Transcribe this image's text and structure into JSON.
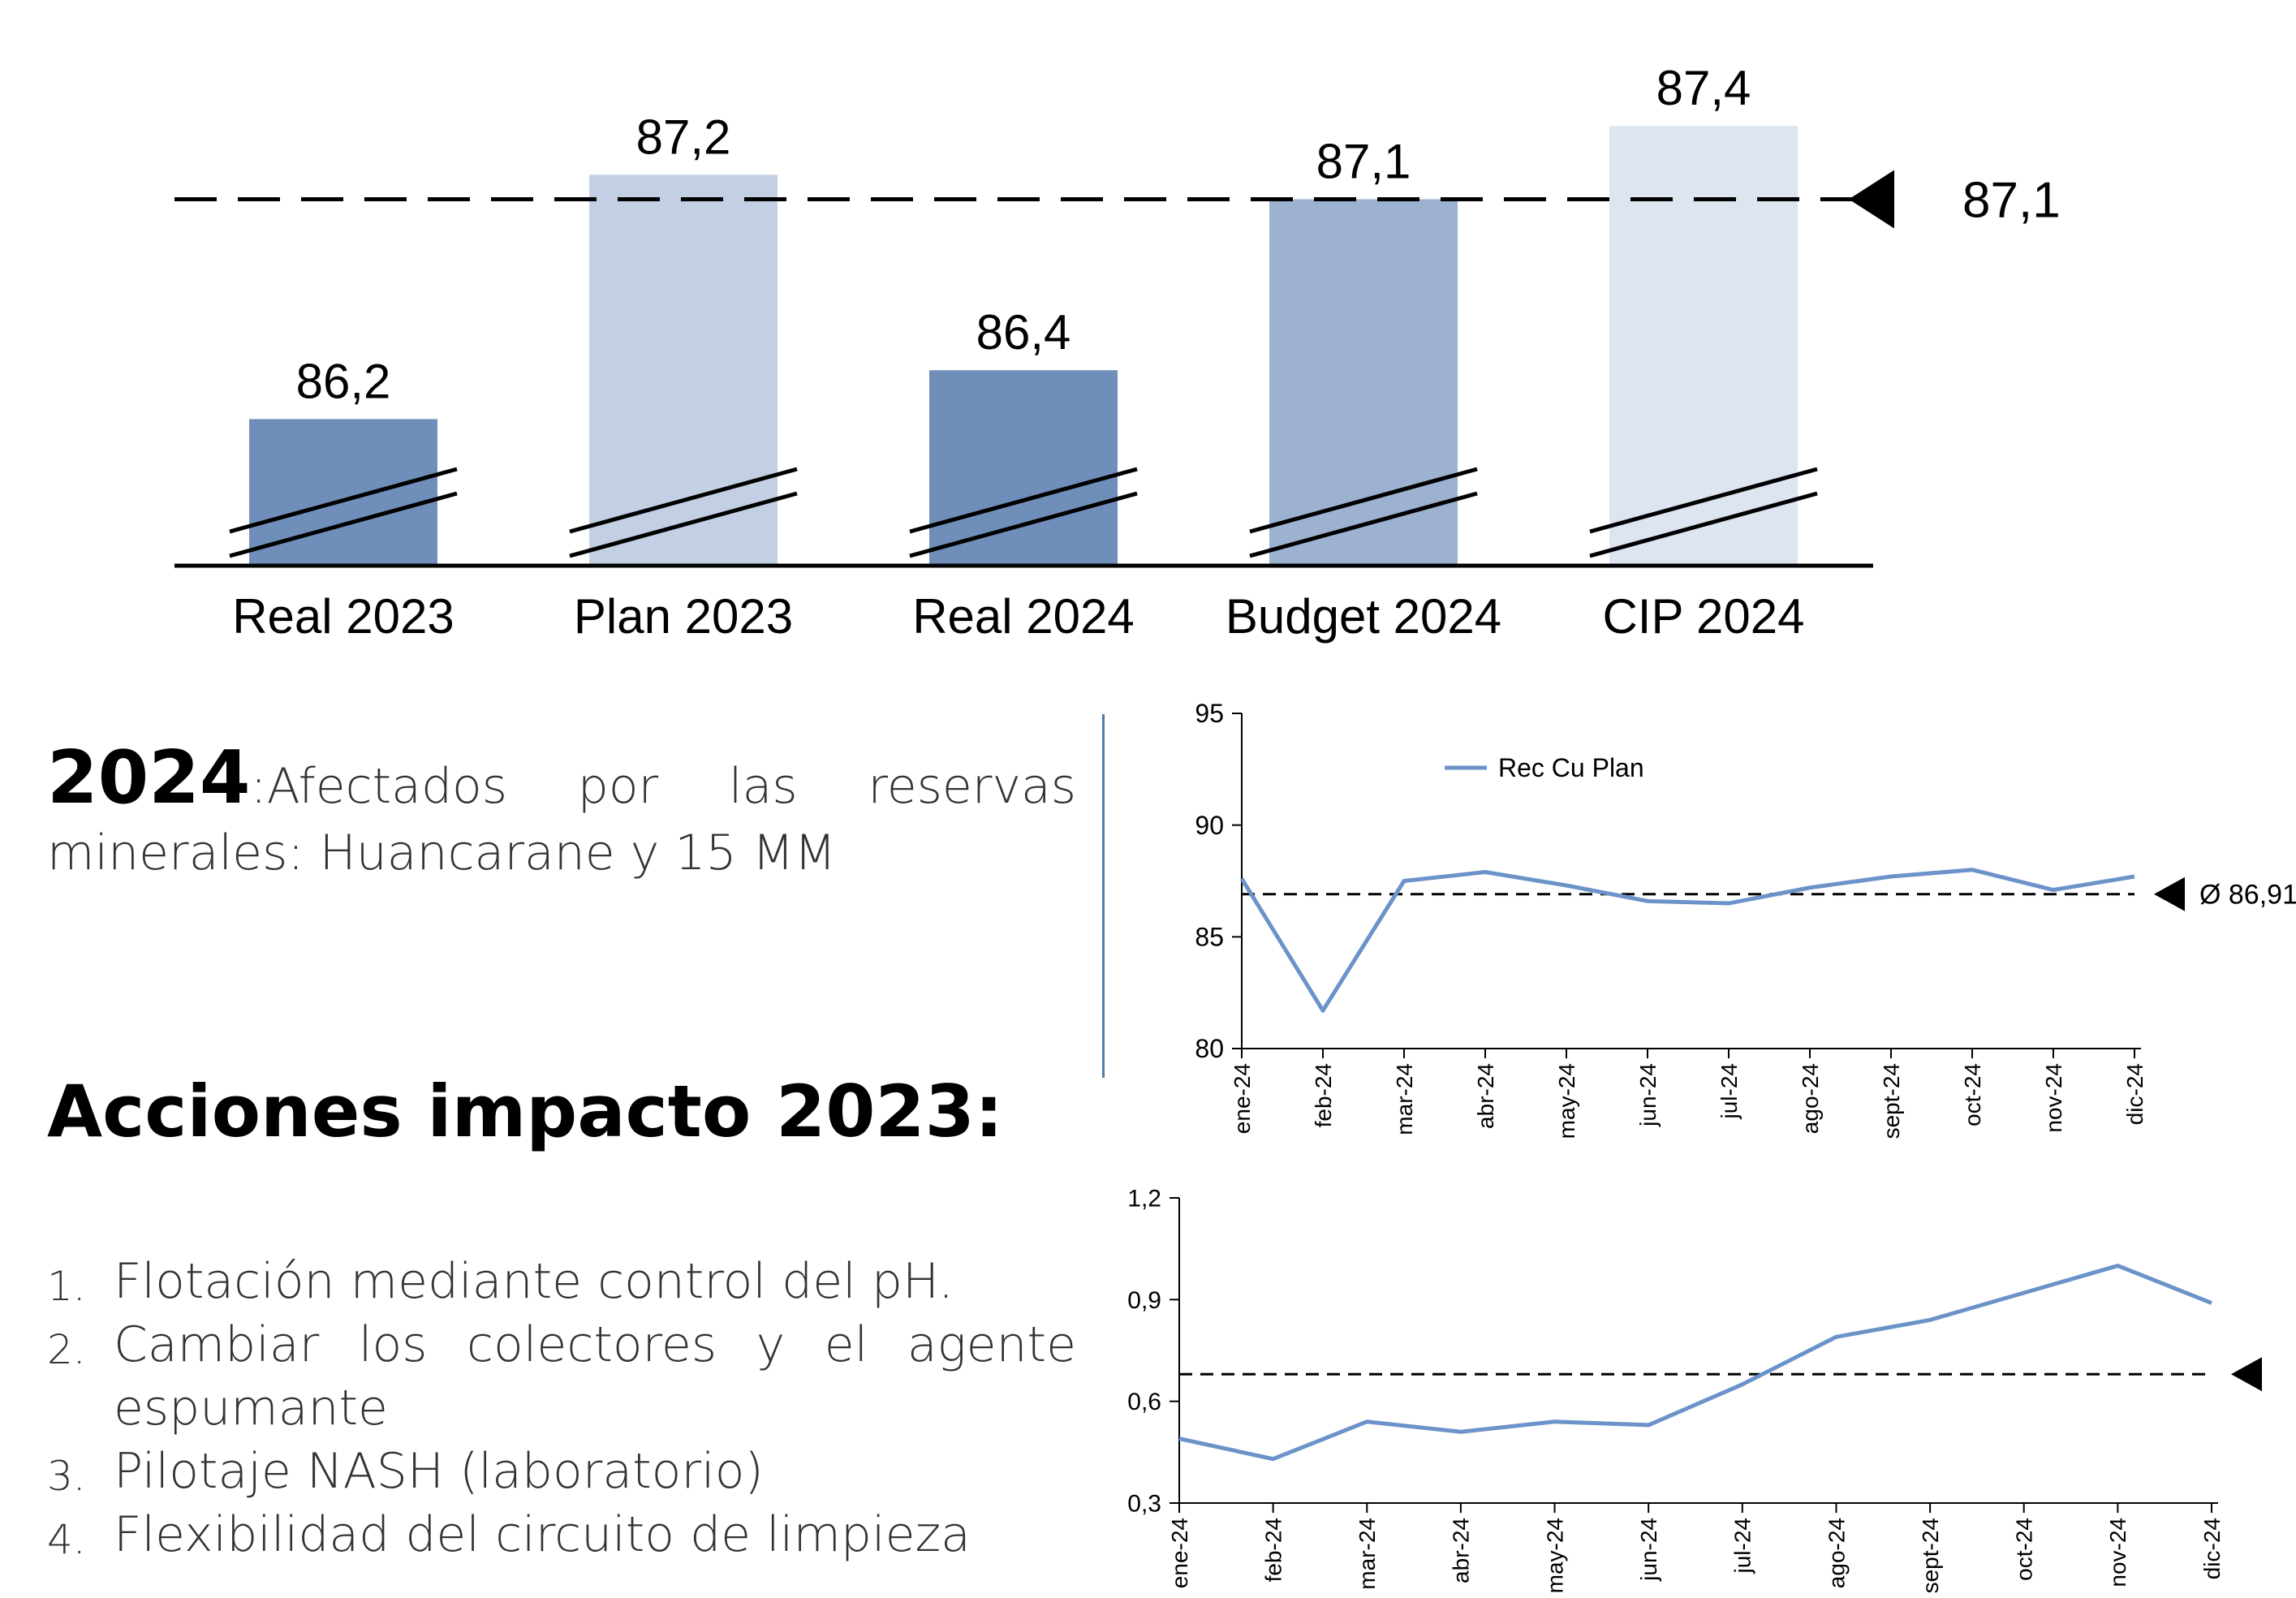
{
  "chart_data": [
    {
      "type": "bar",
      "categories": [
        "Real 2023",
        "Plan 2023",
        "Real 2024",
        "Budget 2024",
        "CIP 2024"
      ],
      "values": [
        86.2,
        87.2,
        86.4,
        87.1,
        87.4
      ],
      "value_labels": [
        "86,2",
        "87,2",
        "86,4",
        "87,1",
        "87,4"
      ],
      "colors": [
        "#6f8fba",
        "#c3cfe3",
        "#6f8fba",
        "#9db1d0",
        "#dde5f1"
      ],
      "ylim": [
        85.6,
        87.55
      ],
      "axis_break": true,
      "reference_line": {
        "value": 87.1,
        "label": "87,1",
        "style": "dashed"
      }
    },
    {
      "type": "line",
      "x": [
        "ene-24",
        "feb-24",
        "mar-24",
        "abr-24",
        "may-24",
        "jun-24",
        "jul-24",
        "ago-24",
        "sept-24",
        "oct-24",
        "nov-24",
        "dic-24"
      ],
      "series": [
        {
          "name": "Rec Cu Plan",
          "color": "#6b93c9",
          "values": [
            87.6,
            81.7,
            87.5,
            87.9,
            87.3,
            86.6,
            86.5,
            87.2,
            87.7,
            88.0,
            87.1,
            87.7
          ]
        }
      ],
      "ylim": [
        80,
        95
      ],
      "yticks": [
        "80",
        "85",
        "90",
        "95"
      ],
      "reference_line": {
        "value": 86.91,
        "label": "Ø 86,91",
        "style": "dashed"
      },
      "legend_position": "top-left"
    },
    {
      "type": "line",
      "x": [
        "ene-24",
        "feb-24",
        "mar-24",
        "abr-24",
        "may-24",
        "jun-24",
        "jul-24",
        "ago-24",
        "sept-24",
        "oct-24",
        "nov-24",
        "dic-24"
      ],
      "series": [
        {
          "color": "#6b93c9",
          "values": [
            0.49,
            0.43,
            0.54,
            0.51,
            0.54,
            0.53,
            0.65,
            0.79,
            0.84,
            0.92,
            1.0,
            0.89
          ]
        }
      ],
      "ylim": [
        0.3,
        1.2
      ],
      "yticks": [
        "0,3",
        "0,6",
        "0,9",
        "1,2"
      ],
      "reference_line": {
        "value": 0.68,
        "style": "dashed"
      }
    }
  ],
  "text": {
    "intro_year": "2024",
    "intro_text": "Afectados por las reservas minerales: Huancarane y 15 MM",
    "actions_title": "Acciones impacto 2023:",
    "actions": [
      {
        "num": "1.",
        "text": "Flotación mediante control del pH."
      },
      {
        "num": "2.",
        "text": "Cambiar los colectores y el agente espumante"
      },
      {
        "num": "3.",
        "text": "Pilotaje NASH (laboratorio)"
      },
      {
        "num": "4.",
        "text": "Flexibilidad del circuito de limpieza"
      }
    ]
  }
}
